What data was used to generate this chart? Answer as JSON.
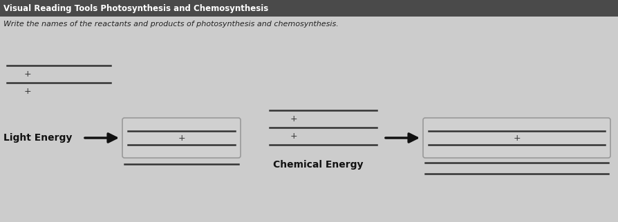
{
  "title": "Visual Reading Tools Photosynthesis and Chemosynthesis",
  "title_bg": "#4a4a4a",
  "title_color": "#ffffff",
  "subtitle": "Write the names of the reactants and products of photosynthesis and chemosynthesis.",
  "subtitle_color": "#222222",
  "bg_color": "#cccccc",
  "line_color": "#333333",
  "plus_color": "#333333",
  "label_light_energy": "Light Energy",
  "label_chemical_energy": "Chemical Energy",
  "arrow_color": "#111111",
  "fig_width": 8.94,
  "fig_height": 3.22,
  "dpi": 100
}
